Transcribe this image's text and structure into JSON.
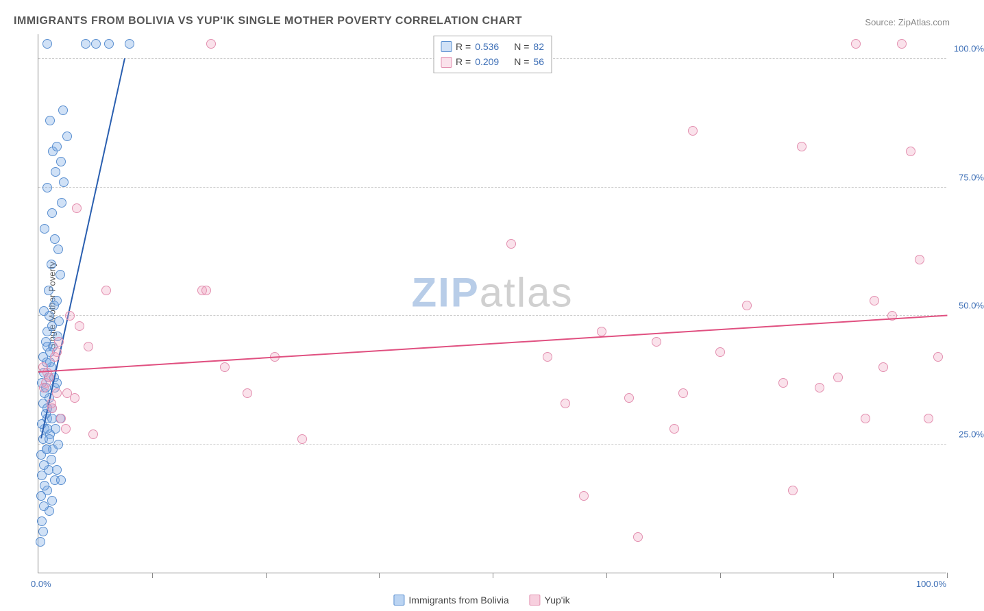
{
  "header": {
    "title": "IMMIGRANTS FROM BOLIVIA VS YUP'IK SINGLE MOTHER POVERTY CORRELATION CHART",
    "source_label": "Source:",
    "source_name": "ZipAtlas.com"
  },
  "chart": {
    "type": "scatter",
    "y_axis_title": "Single Mother Poverty",
    "x_range": [
      0,
      100
    ],
    "y_range": [
      0,
      105
    ],
    "y_ticks": [
      {
        "v": 25,
        "label": "25.0%"
      },
      {
        "v": 50,
        "label": "50.0%"
      },
      {
        "v": 75,
        "label": "75.0%"
      },
      {
        "v": 100,
        "label": "100.0%"
      }
    ],
    "x_ticks_minor": [
      12.5,
      25,
      37.5,
      50,
      62.5,
      75,
      87.5,
      100
    ],
    "x_labels": [
      {
        "v": 0,
        "label": "0.0%"
      },
      {
        "v": 100,
        "label": "100.0%"
      }
    ],
    "grid_color": "#cccccc",
    "background_color": "#ffffff",
    "point_radius": 7,
    "series": [
      {
        "name": "Immigrants from Bolivia",
        "fill": "rgba(120,170,230,0.35)",
        "stroke": "#5a8fd0",
        "trend_color": "#2a5fb0",
        "r": 0.536,
        "n": 82,
        "trend": {
          "x1": 0.3,
          "y1": 26,
          "x2": 9.5,
          "y2": 100
        },
        "points": [
          [
            0.2,
            6
          ],
          [
            0.5,
            8
          ],
          [
            0.4,
            10
          ],
          [
            1.2,
            12
          ],
          [
            0.6,
            13
          ],
          [
            1.5,
            14
          ],
          [
            0.3,
            15
          ],
          [
            1.0,
            16
          ],
          [
            0.7,
            17
          ],
          [
            1.8,
            18
          ],
          [
            2.5,
            18
          ],
          [
            0.4,
            19
          ],
          [
            1.1,
            20
          ],
          [
            2.0,
            20
          ],
          [
            0.6,
            21
          ],
          [
            1.4,
            22
          ],
          [
            0.3,
            23
          ],
          [
            0.9,
            24
          ],
          [
            1.6,
            24
          ],
          [
            2.2,
            25
          ],
          [
            0.5,
            26
          ],
          [
            1.3,
            27
          ],
          [
            0.7,
            28
          ],
          [
            1.9,
            28
          ],
          [
            0.4,
            29
          ],
          [
            1.0,
            30
          ],
          [
            2.4,
            30
          ],
          [
            0.8,
            31
          ],
          [
            1.5,
            32
          ],
          [
            0.5,
            33
          ],
          [
            1.2,
            34
          ],
          [
            0.7,
            35
          ],
          [
            1.8,
            36
          ],
          [
            0.4,
            37
          ],
          [
            2.0,
            37
          ],
          [
            1.1,
            38
          ],
          [
            0.6,
            39
          ],
          [
            1.4,
            40
          ],
          [
            0.9,
            41
          ],
          [
            0.5,
            42
          ],
          [
            1.3,
            43
          ],
          [
            1.6,
            44
          ],
          [
            0.8,
            45
          ],
          [
            2.1,
            46
          ],
          [
            1.0,
            47
          ],
          [
            1.5,
            48
          ],
          [
            2.3,
            49
          ],
          [
            1.2,
            50
          ],
          [
            0.6,
            51
          ],
          [
            1.7,
            52
          ],
          [
            2.0,
            53
          ],
          [
            1.1,
            55
          ],
          [
            2.4,
            58
          ],
          [
            1.4,
            60
          ],
          [
            2.2,
            63
          ],
          [
            1.8,
            65
          ],
          [
            0.7,
            67
          ],
          [
            1.5,
            70
          ],
          [
            2.6,
            72
          ],
          [
            1.0,
            75
          ],
          [
            2.8,
            76
          ],
          [
            1.9,
            78
          ],
          [
            2.5,
            80
          ],
          [
            1.6,
            82
          ],
          [
            2.0,
            83
          ],
          [
            3.2,
            85
          ],
          [
            1.3,
            88
          ],
          [
            2.7,
            90
          ],
          [
            5.2,
            103
          ],
          [
            6.3,
            103
          ],
          [
            7.8,
            103
          ],
          [
            10.0,
            103
          ],
          [
            1.0,
            103
          ],
          [
            1.0,
            28
          ],
          [
            1.0,
            32
          ],
          [
            0.8,
            36
          ],
          [
            1.2,
            26
          ],
          [
            1.5,
            30
          ],
          [
            0.9,
            24
          ],
          [
            1.7,
            38
          ],
          [
            1.3,
            41
          ],
          [
            1.0,
            44
          ]
        ]
      },
      {
        "name": "Yup'ik",
        "fill": "rgba(240,160,190,0.30)",
        "stroke": "#e390b0",
        "trend_color": "#e05080",
        "r": 0.209,
        "n": 56,
        "trend": {
          "x1": 0,
          "y1": 39,
          "x2": 100,
          "y2": 50
        },
        "points": [
          [
            0.5,
            40
          ],
          [
            1.2,
            38
          ],
          [
            2.0,
            35
          ],
          [
            1.5,
            32
          ],
          [
            2.5,
            30
          ],
          [
            3.0,
            28
          ],
          [
            0.8,
            37
          ],
          [
            1.8,
            42
          ],
          [
            2.3,
            45
          ],
          [
            3.5,
            50
          ],
          [
            4.0,
            34
          ],
          [
            0.6,
            36
          ],
          [
            1.4,
            33
          ],
          [
            4.5,
            48
          ],
          [
            2.0,
            43
          ],
          [
            1.0,
            39
          ],
          [
            3.2,
            35
          ],
          [
            5.5,
            44
          ],
          [
            4.2,
            71
          ],
          [
            6.0,
            27
          ],
          [
            7.5,
            55
          ],
          [
            18.0,
            55
          ],
          [
            19.0,
            103
          ],
          [
            18.5,
            55
          ],
          [
            20.5,
            40
          ],
          [
            23.0,
            35
          ],
          [
            29.0,
            26
          ],
          [
            52.0,
            64
          ],
          [
            56.0,
            42
          ],
          [
            58.0,
            33
          ],
          [
            60.0,
            15
          ],
          [
            62.0,
            47
          ],
          [
            65.0,
            34
          ],
          [
            66.0,
            7
          ],
          [
            68.0,
            45
          ],
          [
            70.0,
            28
          ],
          [
            71.0,
            35
          ],
          [
            72.0,
            86
          ],
          [
            75.0,
            43
          ],
          [
            78.0,
            52
          ],
          [
            82.0,
            37
          ],
          [
            83.0,
            16
          ],
          [
            84.0,
            83
          ],
          [
            86.0,
            36
          ],
          [
            88.0,
            38
          ],
          [
            90.0,
            103
          ],
          [
            91.0,
            30
          ],
          [
            92.0,
            53
          ],
          [
            93.0,
            40
          ],
          [
            94.0,
            50
          ],
          [
            95.0,
            103
          ],
          [
            96.0,
            82
          ],
          [
            97.0,
            61
          ],
          [
            98.0,
            30
          ],
          [
            99.0,
            42
          ],
          [
            26.0,
            42
          ]
        ]
      }
    ]
  },
  "legend": {
    "items": [
      {
        "label": "Immigrants from Bolivia",
        "fill": "rgba(120,170,230,0.5)",
        "stroke": "#5a8fd0"
      },
      {
        "label": "Yup'ik",
        "fill": "rgba(240,160,190,0.5)",
        "stroke": "#e390b0"
      }
    ]
  },
  "stats_box": {
    "r_label": "R =",
    "n_label": "N ="
  },
  "watermark": {
    "part1": "ZIP",
    "part2": "atlas"
  }
}
